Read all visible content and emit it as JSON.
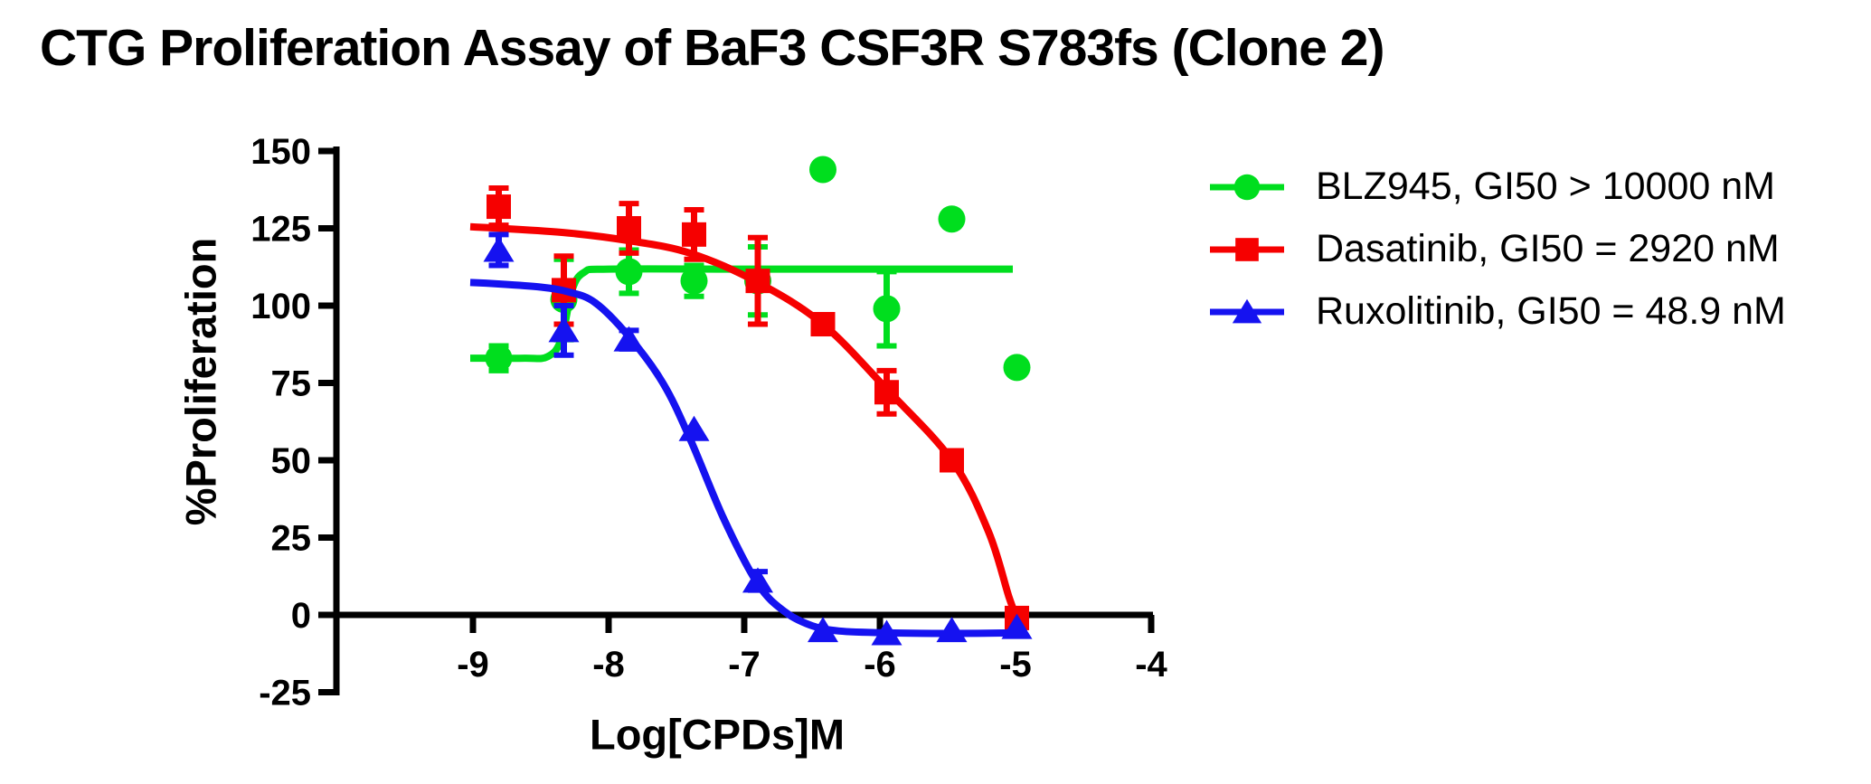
{
  "chart_data": {
    "type": "line",
    "title": "CTG Proliferation Assay of BaF3 CSF3R S783fs (Clone 2)",
    "xlabel": "Log[CPDs]M",
    "ylabel": "%Proliferation",
    "x_ticks": [
      -9,
      -8,
      -7,
      -6,
      -5,
      -4
    ],
    "y_ticks": [
      150,
      125,
      100,
      75,
      50,
      25,
      0,
      -25
    ],
    "xlim": [
      -10,
      -4
    ],
    "ylim": [
      -25,
      150
    ],
    "grid": false,
    "legend_position": "right",
    "axis_color": "#000000",
    "series": [
      {
        "name": "BLZ945",
        "legend_label": "BLZ945, GI50 > 10000 nM",
        "gi50": "> 10000 nM",
        "color": "#00DE1E",
        "marker": "circle",
        "x": [
          -8.81,
          -8.33,
          -7.85,
          -7.37,
          -6.9,
          -6.42,
          -5.95,
          -5.47,
          -4.99
        ],
        "y": [
          83,
          102,
          111,
          108,
          108,
          144,
          99,
          128,
          80
        ],
        "err": [
          4,
          13,
          7,
          5,
          11,
          0,
          12,
          0,
          0
        ],
        "fit_curve": [
          [
            -9.02,
            83
          ],
          [
            -8.62,
            83
          ],
          [
            -8.45,
            83.5
          ],
          [
            -8.35,
            89
          ],
          [
            -8.27,
            105
          ],
          [
            -8.18,
            110.8
          ],
          [
            -8.0,
            111.8
          ],
          [
            -7.0,
            111.8
          ],
          [
            -6.0,
            111.8
          ],
          [
            -5.02,
            111.8
          ]
        ]
      },
      {
        "name": "Dasatinib",
        "legend_label": "Dasatinib, GI50 = 2920 nM",
        "gi50": "= 2920 nM",
        "color": "#F60000",
        "marker": "square",
        "x": [
          -8.81,
          -8.33,
          -7.85,
          -7.37,
          -6.9,
          -6.42,
          -5.95,
          -5.47,
          -4.99
        ],
        "y": [
          132,
          105,
          125,
          123,
          108,
          94,
          72,
          50,
          -1
        ],
        "err": [
          6,
          11,
          8,
          8,
          14,
          0,
          7,
          0,
          0
        ],
        "fit_curve": [
          [
            -9.02,
            125.5
          ],
          [
            -8.8,
            125
          ],
          [
            -8.3,
            123.5
          ],
          [
            -7.85,
            121
          ],
          [
            -7.4,
            117
          ],
          [
            -6.9,
            107.5
          ],
          [
            -6.42,
            94
          ],
          [
            -5.95,
            73
          ],
          [
            -5.47,
            50
          ],
          [
            -5.2,
            27
          ],
          [
            -5.05,
            6
          ],
          [
            -4.99,
            -1
          ]
        ]
      },
      {
        "name": "Ruxolitinib",
        "legend_label": "Ruxolitinib, GI50 = 48.9 nM",
        "gi50": "= 48.9 nM",
        "color": "#1512F0",
        "marker": "triangle",
        "x": [
          -8.81,
          -8.33,
          -7.85,
          -7.37,
          -6.9,
          -6.42,
          -5.95,
          -5.47,
          -4.99
        ],
        "y": [
          118,
          92,
          89,
          60,
          11,
          -5,
          -6,
          -5,
          -4
        ],
        "err": [
          5,
          8,
          3,
          0,
          3,
          0,
          0,
          0,
          0
        ],
        "fit_curve": [
          [
            -9.02,
            107.5
          ],
          [
            -8.8,
            107
          ],
          [
            -8.5,
            106
          ],
          [
            -8.3,
            104.5
          ],
          [
            -8.1,
            101
          ],
          [
            -7.85,
            90
          ],
          [
            -7.6,
            75
          ],
          [
            -7.4,
            57
          ],
          [
            -7.15,
            31
          ],
          [
            -6.9,
            10
          ],
          [
            -6.7,
            1
          ],
          [
            -6.5,
            -3.5
          ],
          [
            -6.3,
            -5.2
          ],
          [
            -5.95,
            -5.8
          ],
          [
            -5.5,
            -6
          ],
          [
            -4.96,
            -5.8
          ]
        ]
      }
    ]
  }
}
